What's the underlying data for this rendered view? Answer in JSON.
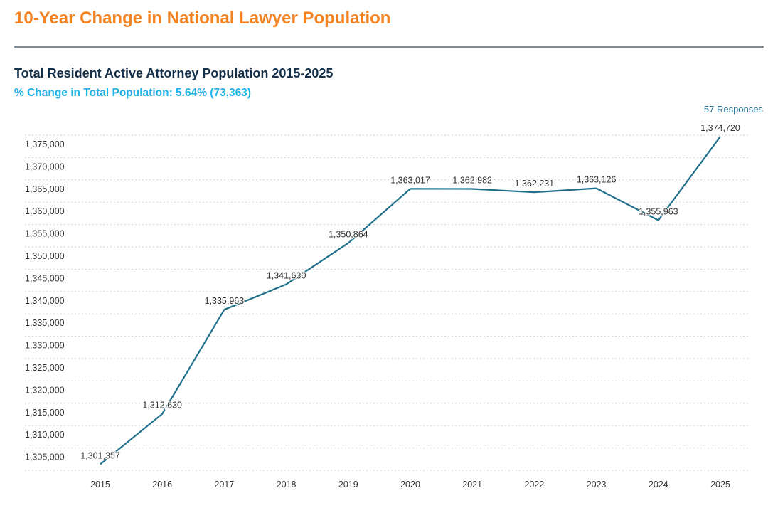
{
  "page": {
    "title": "10-Year Change in National Lawyer Population"
  },
  "chart_header": {
    "title": "Total Resident Active Attorney Population 2015-2025",
    "subtitle": "% Change in Total Population: 5.64% (73,363)",
    "responses": "57 Responses"
  },
  "colors": {
    "title": "#f58220",
    "subtitle": "#1fb4e6",
    "series": "#1f6f8b"
  },
  "chart_data": {
    "type": "line",
    "title": "Total Resident Active Attorney Population 2015-2025",
    "subtitle": "% Change in Total Population: 5.64% (73,363)",
    "xlabel": "",
    "ylabel": "",
    "categories": [
      "2015",
      "2016",
      "2017",
      "2018",
      "2019",
      "2020",
      "2021",
      "2022",
      "2023",
      "2024",
      "2025"
    ],
    "series": [
      {
        "name": "Total Resident Active Attorney Population",
        "values": [
          1301357,
          1312630,
          1335963,
          1341630,
          1350864,
          1363017,
          1362982,
          1362231,
          1363126,
          1355963,
          1374720
        ],
        "data_labels": [
          "1,301,357",
          "1,312,630",
          "1,335,963",
          "1,341,630",
          "1,350,864",
          "1,363,017",
          "1,362,982",
          "1,362,231",
          "1,363,126",
          "1,355,963",
          "1,374,720"
        ]
      }
    ],
    "ylim": [
      1300000,
      1375000
    ],
    "yticks": [
      1375000,
      1370000,
      1365000,
      1360000,
      1355000,
      1350000,
      1345000,
      1340000,
      1335000,
      1330000,
      1325000,
      1320000,
      1315000,
      1310000,
      1305000,
      1300000
    ],
    "ytick_labels": [
      "1,375,000",
      "1,370,000",
      "1,365,000",
      "1,360,000",
      "1,355,000",
      "1,350,000",
      "1,345,000",
      "1,340,000",
      "1,335,000",
      "1,330,000",
      "1,325,000",
      "1,320,000",
      "1,315,000",
      "1,310,000",
      "1,305,000",
      ""
    ],
    "grid": true,
    "legend": "none"
  }
}
